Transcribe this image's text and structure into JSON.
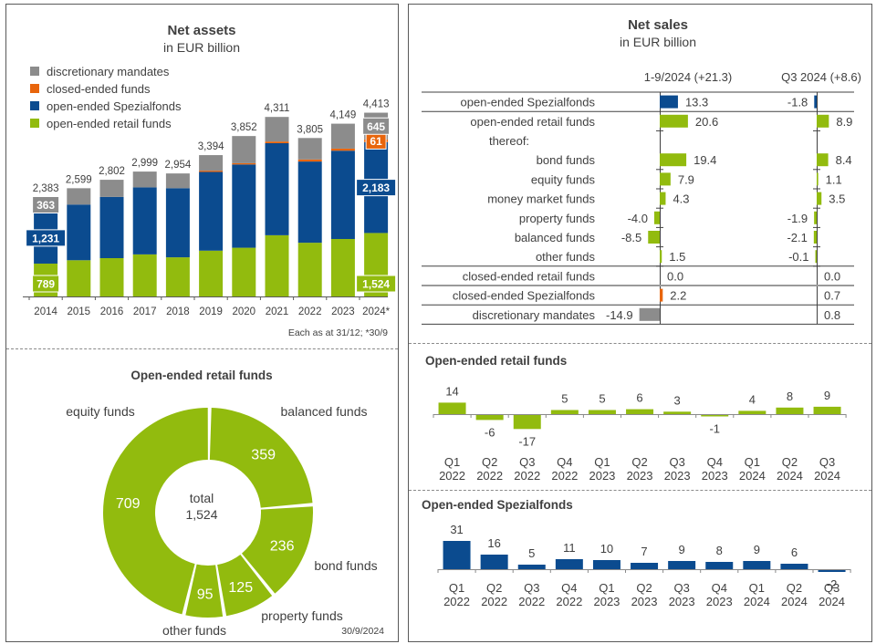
{
  "colors": {
    "discretionary": "#8c8c8c",
    "closed": "#e8650c",
    "spezial": "#0b4b8f",
    "retail": "#92bb0e",
    "axis": "#595959",
    "text": "#404040"
  },
  "chart_data": [
    {
      "type": "bar",
      "stacked": true,
      "title": "Net assets",
      "subtitle": "in EUR billion",
      "footnote": "Each as at 31/12; *30/9",
      "categories": [
        "2014",
        "2015",
        "2016",
        "2017",
        "2018",
        "2019",
        "2020",
        "2021",
        "2022",
        "2023",
        "2024*"
      ],
      "totals": [
        2383,
        2599,
        2802,
        2999,
        2954,
        3394,
        3852,
        4311,
        3805,
        4149,
        4413
      ],
      "total_labels": [
        "2,383",
        "2,599",
        "2,802",
        "2,999",
        "2,954",
        "3,394",
        "3,852",
        "4,311",
        "3,805",
        "4,149",
        "4,413"
      ],
      "series": [
        {
          "name": "open-ended retail funds",
          "color_key": "retail",
          "values": [
            789,
            870,
            920,
            1010,
            940,
            1100,
            1170,
            1470,
            1290,
            1380,
            1524
          ]
        },
        {
          "name": "open-ended Spezialfonds",
          "color_key": "spezial",
          "values": [
            1231,
            1337,
            1470,
            1610,
            1660,
            1890,
            2000,
            2210,
            1950,
            2120,
            2183
          ]
        },
        {
          "name": "closed-ended funds",
          "color_key": "closed",
          "values": [
            0,
            0,
            0,
            0,
            0,
            30,
            30,
            40,
            50,
            50,
            61
          ]
        },
        {
          "name": "discretionary mandates",
          "color_key": "discretionary",
          "values": [
            363,
            392,
            412,
            379,
            354,
            374,
            652,
            591,
            515,
            599,
            645
          ]
        }
      ],
      "value_labels": [
        {
          "category": "2014",
          "series": "open-ended retail funds",
          "text": "789"
        },
        {
          "category": "2014",
          "series": "open-ended Spezialfonds",
          "text": "1,231"
        },
        {
          "category": "2014",
          "series": "discretionary mandates",
          "text": "363"
        },
        {
          "category": "2024*",
          "series": "open-ended retail funds",
          "text": "1,524"
        },
        {
          "category": "2024*",
          "series": "open-ended Spezialfonds",
          "text": "2,183"
        },
        {
          "category": "2024*",
          "series": "closed-ended funds",
          "text": "61"
        },
        {
          "category": "2024*",
          "series": "discretionary mandates",
          "text": "645"
        }
      ],
      "legend": [
        "discretionary mandates",
        "closed-ended funds",
        "open-ended Spezialfonds",
        "open-ended retail funds"
      ],
      "legend_position": "top-left",
      "ylim": [
        0,
        4600
      ],
      "grid": false
    },
    {
      "type": "pie",
      "donut": true,
      "title": "Open-ended retail funds",
      "center_label": "total",
      "center_value": "1,524",
      "date": "30/9/2024",
      "slices": [
        {
          "name": "balanced funds",
          "value": 359
        },
        {
          "name": "bond funds",
          "value": 236
        },
        {
          "name": "property funds",
          "value": 125
        },
        {
          "name": "other funds",
          "value": 95
        },
        {
          "name": "equity funds",
          "value": 709
        }
      ]
    },
    {
      "type": "bar",
      "orientation": "horizontal",
      "title": "Net sales",
      "subtitle": "in EUR billion",
      "columns": [
        {
          "header": "1-9/2024 (+21.3)"
        },
        {
          "header": "Q3 2024 (+8.6)"
        }
      ],
      "rows": [
        {
          "label": "open-ended Spezialfonds",
          "color_key": "spezial",
          "values": [
            13.3,
            -1.8
          ],
          "texts": [
            "13.3",
            "-1.8"
          ],
          "bar": true
        },
        {
          "label": "open-ended retail funds",
          "color_key": "retail",
          "values": [
            20.6,
            8.9
          ],
          "texts": [
            "20.6",
            "8.9"
          ],
          "bar": true
        },
        {
          "label": "thereof:",
          "header": true
        },
        {
          "label": "bond funds",
          "color_key": "retail",
          "values": [
            19.4,
            8.4
          ],
          "texts": [
            "19.4",
            "8.4"
          ],
          "bar": true
        },
        {
          "label": "equity funds",
          "color_key": "retail",
          "values": [
            7.9,
            1.1
          ],
          "texts": [
            "7.9",
            "1.1"
          ],
          "bar": true
        },
        {
          "label": "money market funds",
          "color_key": "retail",
          "values": [
            4.3,
            3.5
          ],
          "texts": [
            "4.3",
            "3.5"
          ],
          "bar": true
        },
        {
          "label": "property funds",
          "color_key": "retail",
          "values": [
            -4.0,
            -1.9
          ],
          "texts": [
            "-4.0",
            "-1.9"
          ],
          "bar": true
        },
        {
          "label": "balanced funds",
          "color_key": "retail",
          "values": [
            -8.5,
            -2.1
          ],
          "texts": [
            "-8.5",
            "-2.1"
          ],
          "bar": true
        },
        {
          "label": "other funds",
          "color_key": "retail",
          "values": [
            1.5,
            -0.1
          ],
          "texts": [
            "1.5",
            "-0.1"
          ],
          "bar": true
        },
        {
          "label": "closed-ended retail funds",
          "color_key": "closed",
          "values": [
            0.0,
            0.0
          ],
          "texts": [
            "0.0",
            "0.0"
          ],
          "bar": false
        },
        {
          "label": "closed-ended Spezialfonds",
          "color_key": "closed",
          "values": [
            2.2,
            0.7
          ],
          "texts": [
            "2.2",
            "0.7"
          ],
          "bar": true,
          "bar_second": false
        },
        {
          "label": "discretionary mandates",
          "color_key": "discretionary",
          "values": [
            -14.9,
            0.8
          ],
          "texts": [
            "-14.9",
            "0.8"
          ],
          "bar": true,
          "bar_second": false
        }
      ]
    },
    {
      "type": "bar",
      "title": "Open-ended retail funds",
      "color_key": "retail",
      "categories": [
        [
          "Q1",
          "2022"
        ],
        [
          "Q2",
          "2022"
        ],
        [
          "Q3",
          "2022"
        ],
        [
          "Q4",
          "2022"
        ],
        [
          "Q1",
          "2023"
        ],
        [
          "Q2",
          "2023"
        ],
        [
          "Q3",
          "2023"
        ],
        [
          "Q4",
          "2023"
        ],
        [
          "Q1",
          "2024"
        ],
        [
          "Q2",
          "2024"
        ],
        [
          "Q3",
          "2024"
        ]
      ],
      "values": [
        14,
        -6,
        -17,
        5,
        5,
        6,
        3,
        -1,
        4,
        8,
        9
      ]
    },
    {
      "type": "bar",
      "title": "Open-ended Spezialfonds",
      "color_key": "spezial",
      "categories": [
        [
          "Q1",
          "2022"
        ],
        [
          "Q2",
          "2022"
        ],
        [
          "Q3",
          "2022"
        ],
        [
          "Q4",
          "2022"
        ],
        [
          "Q1",
          "2023"
        ],
        [
          "Q2",
          "2023"
        ],
        [
          "Q3",
          "2023"
        ],
        [
          "Q4",
          "2023"
        ],
        [
          "Q1",
          "2024"
        ],
        [
          "Q2",
          "2024"
        ],
        [
          "Q3",
          "2024"
        ]
      ],
      "values": [
        31,
        16,
        5,
        11,
        10,
        7,
        9,
        8,
        9,
        6,
        -2
      ]
    }
  ]
}
